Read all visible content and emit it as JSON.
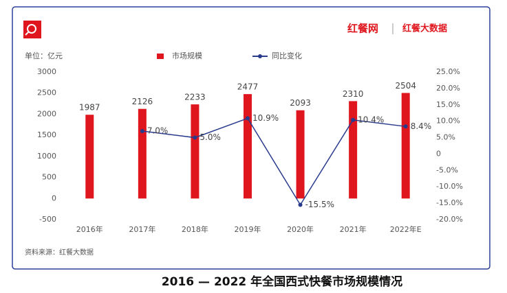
{
  "chart_data": {
    "type": "bar-line",
    "title": "2016 — 2022 年全国西式快餐市场规模情况",
    "brand": "红餐网",
    "brand_sub": "红餐大数据",
    "unit_label": "单位：亿元",
    "source": "资料来源：红餐大数据",
    "categories": [
      "2016年",
      "2017年",
      "2018年",
      "2019年",
      "2020年",
      "2021年",
      "2022年E"
    ],
    "series": [
      {
        "name": "市场规模",
        "color": "#e0161e",
        "kind": "bar",
        "axis": "y",
        "values": [
          1987,
          2126,
          2233,
          2477,
          2093,
          2310,
          2504
        ]
      },
      {
        "name": "同比变化",
        "color": "#283a8c",
        "kind": "line",
        "axis": "y2",
        "values": [
          null,
          7.0,
          5.0,
          10.9,
          -15.5,
          10.4,
          8.4
        ],
        "value_labels": [
          null,
          "7.0%",
          "5.0%",
          "10.9%",
          "-15.5%",
          "10.4%",
          "8.4%"
        ]
      }
    ],
    "ylim": [
      -500,
      3000
    ],
    "yticks": [
      -500,
      0,
      500,
      1000,
      1500,
      2000,
      2500,
      3000
    ],
    "y2lim": [
      -20,
      25
    ],
    "y2ticks": [
      {
        "value": -20,
        "label": "-20.0%"
      },
      {
        "value": -15,
        "label": "-15.0%"
      },
      {
        "value": -10,
        "label": "-10.0%"
      },
      {
        "value": -5,
        "label": "-5.0%"
      },
      0,
      {
        "value": 5,
        "label": "5.0%"
      },
      {
        "value": 10,
        "label": "10.0%"
      },
      {
        "value": 15,
        "label": "15.0%"
      },
      {
        "value": 20,
        "label": "20.0%"
      },
      {
        "value": 25,
        "label": "25.0%"
      }
    ],
    "grid": false
  }
}
